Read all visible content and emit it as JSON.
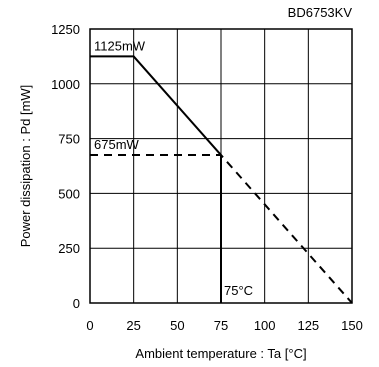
{
  "chart_data": {
    "type": "line",
    "model_label": "BD6753KV",
    "xlabel": "Ambient temperature : Ta [°C]",
    "ylabel": "Power dissipation : Pd [mW]",
    "xlim": [
      0,
      150
    ],
    "ylim": [
      0,
      1250
    ],
    "x_ticks": [
      "0",
      "25",
      "50",
      "75",
      "100",
      "125",
      "150"
    ],
    "y_ticks": [
      "0",
      "250",
      "500",
      "750",
      "1000",
      "1250"
    ],
    "grid": true,
    "series": [
      {
        "style": "solid",
        "x": [
          0,
          25,
          75,
          75
        ],
        "y": [
          1125,
          1125,
          675,
          0
        ]
      },
      {
        "style": "dashed",
        "x": [
          0,
          75,
          150
        ],
        "y": [
          675,
          675,
          0
        ]
      }
    ],
    "annotations": [
      {
        "text": "1125mW",
        "x": 0,
        "y": 1125
      },
      {
        "text": "675mW",
        "x": 0,
        "y": 675
      },
      {
        "text": "75°C",
        "x": 75,
        "y": 0
      }
    ],
    "colors": {
      "line": "#000000",
      "grid": "#000000",
      "background": "#ffffff"
    }
  }
}
